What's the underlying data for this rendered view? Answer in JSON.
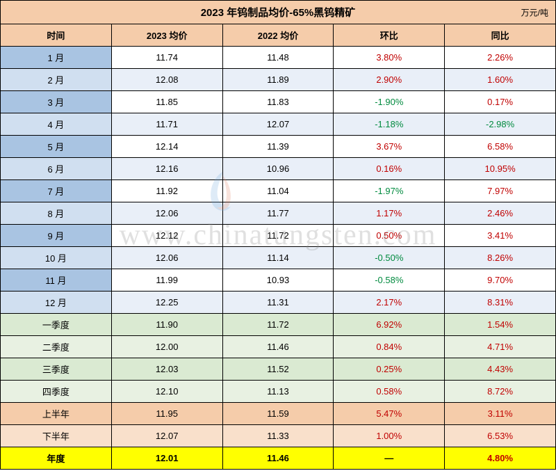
{
  "title": "2023 年钨制品均价-65%黑钨精矿",
  "unit": "万元/吨",
  "columns": [
    "时间",
    "2023 均价",
    "2022 均价",
    "环比",
    "同比"
  ],
  "col_widths": [
    "20%",
    "20%",
    "20%",
    "20%",
    "20%"
  ],
  "header_bg": "#f5ccaa",
  "title_bg": "#f5ccaa",
  "border_color": "#000000",
  "pos_color": "#c00000",
  "neg_color": "#008a3e",
  "row_types": {
    "month": {
      "label_bg_even": "#a9c4e2",
      "label_bg_odd": "#d0dff0",
      "data_bg_even": "#ffffff",
      "data_bg_odd": "#e9eff8"
    },
    "quarter": {
      "bg_even": "#daead2",
      "bg_odd": "#e8f1e2"
    },
    "half": {
      "bg_even": "#f5ccaa",
      "bg_odd": "#f9e0cb"
    },
    "year": {
      "bg": "#ffff00"
    }
  },
  "rows": [
    {
      "type": "month",
      "idx": 0,
      "label": "1 月",
      "v2023": "11.74",
      "v2022": "11.48",
      "mom": "3.80%",
      "mom_dir": "pos",
      "yoy": "2.26%",
      "yoy_dir": "pos"
    },
    {
      "type": "month",
      "idx": 1,
      "label": "2 月",
      "v2023": "12.08",
      "v2022": "11.89",
      "mom": "2.90%",
      "mom_dir": "pos",
      "yoy": "1.60%",
      "yoy_dir": "pos"
    },
    {
      "type": "month",
      "idx": 2,
      "label": "3 月",
      "v2023": "11.85",
      "v2022": "11.83",
      "mom": "-1.90%",
      "mom_dir": "neg",
      "yoy": "0.17%",
      "yoy_dir": "pos"
    },
    {
      "type": "month",
      "idx": 3,
      "label": "4 月",
      "v2023": "11.71",
      "v2022": "12.07",
      "mom": "-1.18%",
      "mom_dir": "neg",
      "yoy": "-2.98%",
      "yoy_dir": "neg"
    },
    {
      "type": "month",
      "idx": 4,
      "label": "5 月",
      "v2023": "12.14",
      "v2022": "11.39",
      "mom": "3.67%",
      "mom_dir": "pos",
      "yoy": "6.58%",
      "yoy_dir": "pos"
    },
    {
      "type": "month",
      "idx": 5,
      "label": "6 月",
      "v2023": "12.16",
      "v2022": "10.96",
      "mom": "0.16%",
      "mom_dir": "pos",
      "yoy": "10.95%",
      "yoy_dir": "pos"
    },
    {
      "type": "month",
      "idx": 6,
      "label": "7 月",
      "v2023": "11.92",
      "v2022": "11.04",
      "mom": "-1.97%",
      "mom_dir": "neg",
      "yoy": "7.97%",
      "yoy_dir": "pos"
    },
    {
      "type": "month",
      "idx": 7,
      "label": "8 月",
      "v2023": "12.06",
      "v2022": "11.77",
      "mom": "1.17%",
      "mom_dir": "pos",
      "yoy": "2.46%",
      "yoy_dir": "pos"
    },
    {
      "type": "month",
      "idx": 8,
      "label": "9 月",
      "v2023": "12.12",
      "v2022": "11.72",
      "mom": "0.50%",
      "mom_dir": "pos",
      "yoy": "3.41%",
      "yoy_dir": "pos"
    },
    {
      "type": "month",
      "idx": 9,
      "label": "10 月",
      "v2023": "12.06",
      "v2022": "11.14",
      "mom": "-0.50%",
      "mom_dir": "neg",
      "yoy": "8.26%",
      "yoy_dir": "pos"
    },
    {
      "type": "month",
      "idx": 10,
      "label": "11 月",
      "v2023": "11.99",
      "v2022": "10.93",
      "mom": "-0.58%",
      "mom_dir": "neg",
      "yoy": "9.70%",
      "yoy_dir": "pos"
    },
    {
      "type": "month",
      "idx": 11,
      "label": "12 月",
      "v2023": "12.25",
      "v2022": "11.31",
      "mom": "2.17%",
      "mom_dir": "pos",
      "yoy": "8.31%",
      "yoy_dir": "pos"
    },
    {
      "type": "quarter",
      "idx": 0,
      "label": "一季度",
      "v2023": "11.90",
      "v2022": "11.72",
      "mom": "6.92%",
      "mom_dir": "pos",
      "yoy": "1.54%",
      "yoy_dir": "pos"
    },
    {
      "type": "quarter",
      "idx": 1,
      "label": "二季度",
      "v2023": "12.00",
      "v2022": "11.46",
      "mom": "0.84%",
      "mom_dir": "pos",
      "yoy": "4.71%",
      "yoy_dir": "pos"
    },
    {
      "type": "quarter",
      "idx": 2,
      "label": "三季度",
      "v2023": "12.03",
      "v2022": "11.52",
      "mom": "0.25%",
      "mom_dir": "pos",
      "yoy": "4.43%",
      "yoy_dir": "pos"
    },
    {
      "type": "quarter",
      "idx": 3,
      "label": "四季度",
      "v2023": "12.10",
      "v2022": "11.13",
      "mom": "0.58%",
      "mom_dir": "pos",
      "yoy": "8.72%",
      "yoy_dir": "pos"
    },
    {
      "type": "half",
      "idx": 0,
      "label": "上半年",
      "v2023": "11.95",
      "v2022": "11.59",
      "mom": "5.47%",
      "mom_dir": "pos",
      "yoy": "3.11%",
      "yoy_dir": "pos"
    },
    {
      "type": "half",
      "idx": 1,
      "label": "下半年",
      "v2023": "12.07",
      "v2022": "11.33",
      "mom": "1.00%",
      "mom_dir": "pos",
      "yoy": "6.53%",
      "yoy_dir": "pos"
    },
    {
      "type": "year",
      "idx": 0,
      "label": "年度",
      "v2023": "12.01",
      "v2022": "11.46",
      "mom": "—",
      "mom_dir": "",
      "yoy": "4.80%",
      "yoy_dir": "pos"
    }
  ],
  "watermark_text": "www.chinatungsten.com"
}
